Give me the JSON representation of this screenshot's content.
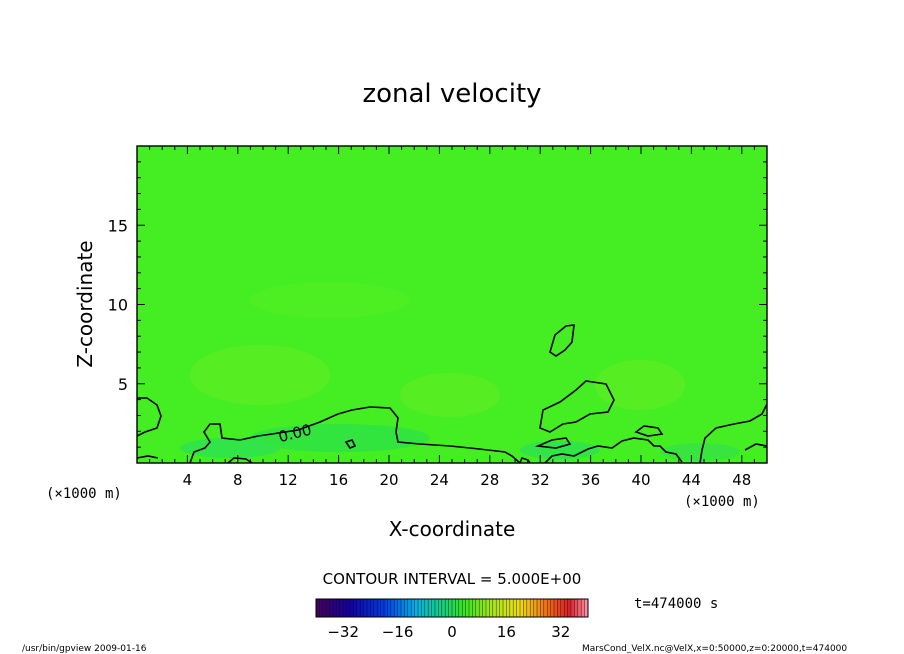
{
  "chart_data": {
    "type": "heatmap",
    "title": "zonal velocity",
    "xlabel": "X-coordinate",
    "ylabel": "Z-coordinate",
    "x_unit": "(×1000 m)",
    "y_unit": "(×1000 m)",
    "xlim": [
      0,
      50
    ],
    "ylim": [
      0,
      20
    ],
    "x_ticks": [
      4,
      8,
      12,
      16,
      20,
      24,
      28,
      32,
      36,
      40,
      44,
      48
    ],
    "y_ticks": [
      5,
      10,
      15
    ],
    "contour_label": "0.00",
    "contour_interval_text": "CONTOUR INTERVAL = 5.000E+00",
    "time_text": "t=474000 s",
    "colorbar": {
      "range": [
        -40,
        40
      ],
      "ticks": [
        -32,
        -16,
        0,
        16,
        32
      ]
    },
    "background_color": "#44ee22"
  },
  "footer": {
    "left": "/usr/bin/gpview  2009-01-16",
    "right": "MarsCond_VelX.nc@VelX,x=0:50000,z=0:20000,t=474000"
  }
}
